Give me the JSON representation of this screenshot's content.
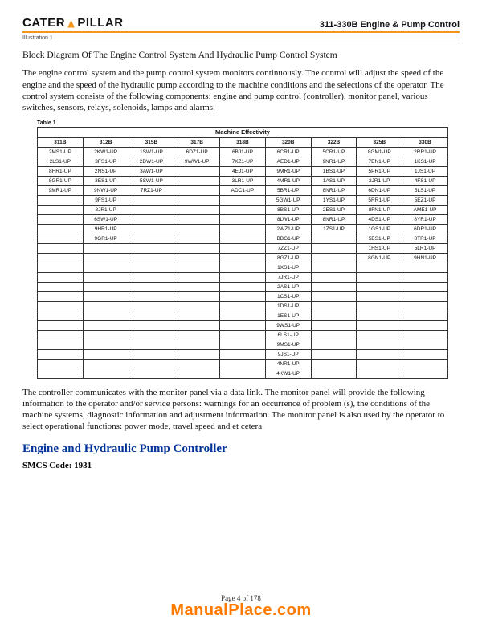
{
  "header": {
    "brand_pre": "CATER",
    "brand_post": "PILLAR",
    "doc_title": "311-330B Engine & Pump Control"
  },
  "illustration": "Illustration 1",
  "block_title": "Block Diagram Of The Engine Control System And Hydraulic Pump Control System",
  "para1": "The engine control system and the pump control system monitors continuously. The control will adjust the speed of the engine and the speed of the hydraulic pump according to the machine conditions and the selections of the operator. The control system consists of the following components: engine and pump control (controller), monitor panel, various switches, sensors, relays, solenoids, lamps and alarms.",
  "table": {
    "label": "Table 1",
    "title": "Machine Effectivity",
    "columns": [
      "311B",
      "312B",
      "315B",
      "317B",
      "318B",
      "320B",
      "322B",
      "325B",
      "330B"
    ],
    "rows": [
      [
        "2MS1-UP",
        "2KW1-UP",
        "1SW1-UP",
        "6DZ1-UP",
        "6BJ1-UP",
        "6CR1-UP",
        "5CR1-UP",
        "8GM1-UP",
        "2RR1-UP"
      ],
      [
        "2LS1-UP",
        "3FS1-UP",
        "2DW1-UP",
        "9WW1-UP",
        "7KZ1-UP",
        "AED1-UP",
        "9NR1-UP",
        "7EN1-UP",
        "1KS1-UP"
      ],
      [
        "8HR1-UP",
        "2NS1-UP",
        "3AW1-UP",
        "",
        "4EJ1-UP",
        "9MR1-UP",
        "1BS1-UP",
        "5PR1-UP",
        "1JS1-UP"
      ],
      [
        "8GR1-UP",
        "3ES1-UP",
        "5SW1-UP",
        "",
        "3LR1-UP",
        "4MR1-UP",
        "1AS1-UP",
        "2JR1-UP",
        "4FS1-UP"
      ],
      [
        "9MR1-UP",
        "9NW1-UP",
        "7RZ1-UP",
        "",
        "ADC1-UP",
        "5BR1-UP",
        "8NR1-UP",
        "6DN1-UP",
        "5LS1-UP"
      ],
      [
        "",
        "9FS1-UP",
        "",
        "",
        "",
        "5GW1-UP",
        "1YS1-UP",
        "5RR1-UP",
        "5EZ1-UP"
      ],
      [
        "",
        "8JR1-UP",
        "",
        "",
        "",
        "8BS1-UP",
        "2ES1-UP",
        "8FN1-UP",
        "AME1-UP"
      ],
      [
        "",
        "6SW1-UP",
        "",
        "",
        "",
        "8LW1-UP",
        "8NR1-UP",
        "4DS1-UP",
        "8YR1-UP"
      ],
      [
        "",
        "9HR1-UP",
        "",
        "",
        "",
        "2WZ1-UP",
        "1ZS1-UP",
        "1GS1-UP",
        "6DR1-UP"
      ],
      [
        "",
        "9GR1-UP",
        "",
        "",
        "",
        "BBG1-UP",
        "",
        "5BS1-UP",
        "8TR1-UP"
      ],
      [
        "",
        "",
        "",
        "",
        "",
        "7ZZ1-UP",
        "",
        "1HS1-UP",
        "5LR1-UP"
      ],
      [
        "",
        "",
        "",
        "",
        "",
        "8GZ1-UP",
        "",
        "8GN1-UP",
        "9HN1-UP"
      ],
      [
        "",
        "",
        "",
        "",
        "",
        "1XS1-UP",
        "",
        "",
        ""
      ],
      [
        "",
        "",
        "",
        "",
        "",
        "7JR1-UP",
        "",
        "",
        ""
      ],
      [
        "",
        "",
        "",
        "",
        "",
        "2AS1-UP",
        "",
        "",
        ""
      ],
      [
        "",
        "",
        "",
        "",
        "",
        "1CS1-UP",
        "",
        "",
        ""
      ],
      [
        "",
        "",
        "",
        "",
        "",
        "1DS1-UP",
        "",
        "",
        ""
      ],
      [
        "",
        "",
        "",
        "",
        "",
        "1ES1-UP",
        "",
        "",
        ""
      ],
      [
        "",
        "",
        "",
        "",
        "",
        "9WS1-UP",
        "",
        "",
        ""
      ],
      [
        "",
        "",
        "",
        "",
        "",
        "6LS1-UP",
        "",
        "",
        ""
      ],
      [
        "",
        "",
        "",
        "",
        "",
        "9MS1-UP",
        "",
        "",
        ""
      ],
      [
        "",
        "",
        "",
        "",
        "",
        "9JS1-UP",
        "",
        "",
        ""
      ],
      [
        "",
        "",
        "",
        "",
        "",
        "4NR1-UP",
        "",
        "",
        ""
      ],
      [
        "",
        "",
        "",
        "",
        "",
        "4KW1-UP",
        "",
        "",
        ""
      ]
    ]
  },
  "para2": "The controller communicates with the monitor panel via a data link. The monitor panel will provide the following information to the operator and/or service persons: warnings for an occurrence of problem (s), the conditions of the machine systems, diagnostic information and adjustment information. The monitor panel is also used by the operator to select operational functions: power mode, travel speed and et cetera.",
  "section_heading": "Engine and Hydraulic Pump Controller",
  "smcs": "SMCS Code: 1931",
  "page_number": "Page 4 of 178",
  "watermark": "ManualPlace.com"
}
